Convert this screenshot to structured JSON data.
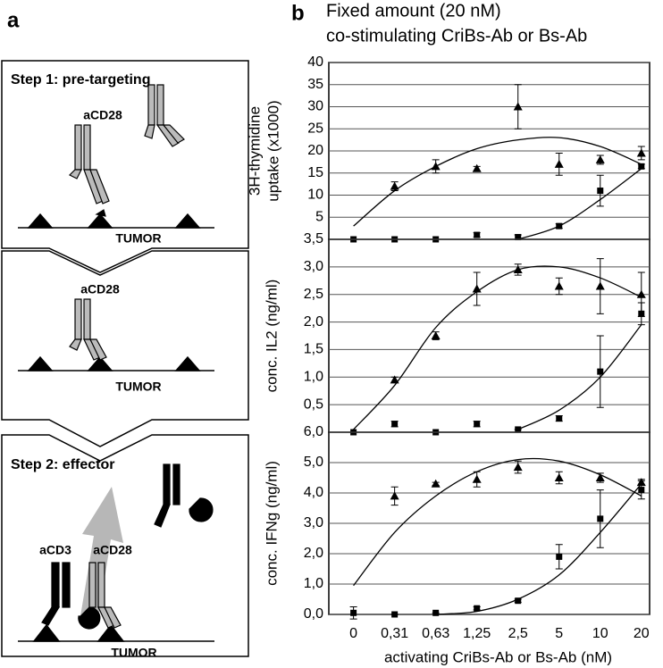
{
  "panel_a": {
    "label": "a",
    "step1": "Step 1: pre-targeting",
    "step2": "Step 2: effector",
    "labels": [
      "aCD28",
      "TUMOR",
      "aCD28",
      "TUMOR",
      "aCD3",
      "aCD28",
      "TUMOR"
    ]
  },
  "panel_b": {
    "label": "b",
    "title": [
      "Fixed amount (20 nM)",
      "co-stimulating CriBs-Ab or Bs-Ab"
    ]
  },
  "chart_data": [
    {
      "type": "line",
      "ylabel": [
        "3H-thymidine",
        "uptake (x1000)"
      ],
      "ylim": [
        0,
        40
      ],
      "yticks": [
        5,
        10,
        15,
        20,
        25,
        30,
        35,
        40
      ],
      "grid": true,
      "series": [
        {
          "marker": "triangle",
          "color": "#000000",
          "values": [
            null,
            12,
            16.5,
            16,
            30,
            17,
            18,
            19.5
          ],
          "errors": [
            null,
            1,
            1.5,
            0.5,
            5,
            2.5,
            1,
            1.5
          ]
        },
        {
          "marker": "square",
          "color": "#000000",
          "values": [
            0,
            0,
            0,
            1,
            0.5,
            3,
            11,
            16.5
          ],
          "errors": [
            0,
            0,
            0,
            0.5,
            0.5,
            0.5,
            3.5,
            0.5
          ]
        },
        {
          "marker": "none",
          "color": "#000000",
          "values": [
            3,
            11,
            16.5,
            20.5,
            22.5,
            23,
            21,
            17
          ]
        },
        {
          "marker": "none",
          "color": "#000000",
          "values": [
            null,
            null,
            null,
            null,
            0,
            3,
            9,
            16
          ]
        }
      ]
    },
    {
      "type": "line",
      "ylabel": [
        "conc. IL2 (ng/ml)"
      ],
      "ylim": [
        0,
        3.5
      ],
      "yticks": [
        {
          "value": 0.5,
          "label": "0,5"
        },
        {
          "value": 1,
          "label": "1,0"
        },
        {
          "value": 1.5,
          "label": "1,5"
        },
        {
          "value": 2,
          "label": "2,0"
        },
        {
          "value": 2.5,
          "label": "2,5"
        },
        {
          "value": 3,
          "label": "3,0"
        },
        {
          "value": 3.5,
          "label": "3,5"
        }
      ],
      "grid": true,
      "series": [
        {
          "marker": "triangle",
          "color": "#000000",
          "values": [
            null,
            0.95,
            1.75,
            2.6,
            2.95,
            2.65,
            2.65,
            2.5
          ],
          "errors": [
            null,
            0.05,
            0.07,
            0.3,
            0.1,
            0.15,
            0.5,
            0.4
          ]
        },
        {
          "marker": "square",
          "color": "#000000",
          "values": [
            0,
            0.15,
            0,
            0.15,
            0.05,
            0.25,
            1.1,
            2.15
          ],
          "errors": [
            0,
            0.05,
            0,
            0.05,
            0,
            0.05,
            0.65,
            0.2
          ]
        },
        {
          "marker": "none",
          "color": "#000000",
          "values": [
            0.05,
            0.85,
            1.9,
            2.55,
            2.95,
            3,
            2.8,
            2.45
          ]
        },
        {
          "marker": "none",
          "color": "#000000",
          "values": [
            null,
            null,
            null,
            null,
            0.05,
            0.4,
            1,
            1.95
          ]
        }
      ]
    },
    {
      "type": "line",
      "ylabel": [
        "conc. IFNg (ng/ml)"
      ],
      "xlabel": "activating CriBs-Ab or Bs-Ab (nM)",
      "categories": [
        "0",
        "0,31",
        "0,63",
        "1,25",
        "2,5",
        "5",
        "10",
        "20"
      ],
      "ylim": [
        0,
        6
      ],
      "yticks": [
        {
          "value": 0,
          "label": "0,0"
        },
        {
          "value": 1,
          "label": "1,0"
        },
        {
          "value": 2,
          "label": "2,0"
        },
        {
          "value": 3,
          "label": "3,0"
        },
        {
          "value": 4,
          "label": "4,0"
        },
        {
          "value": 5,
          "label": "5,0"
        },
        {
          "value": 6,
          "label": "6,0"
        }
      ],
      "grid": true,
      "series": [
        {
          "marker": "triangle",
          "color": "#000000",
          "values": [
            null,
            3.9,
            4.3,
            4.45,
            4.85,
            4.5,
            4.5,
            4.35
          ],
          "errors": [
            null,
            0.3,
            0.05,
            0.25,
            0.2,
            0.2,
            0.15,
            0.1
          ]
        },
        {
          "marker": "square",
          "color": "#000000",
          "values": [
            0.05,
            0,
            0.05,
            0.2,
            0.45,
            1.9,
            3.15,
            4.1
          ],
          "errors": [
            0.2,
            0,
            0,
            0.05,
            0.05,
            0.4,
            0.95,
            0.3
          ]
        },
        {
          "marker": "none",
          "color": "#000000",
          "values": [
            0.95,
            2.7,
            3.9,
            4.7,
            5.1,
            5.05,
            4.6,
            3.9
          ]
        },
        {
          "marker": "none",
          "color": "#000000",
          "values": [
            null,
            null,
            0,
            0.1,
            0.5,
            1.3,
            2.7,
            4.3
          ]
        }
      ]
    }
  ]
}
